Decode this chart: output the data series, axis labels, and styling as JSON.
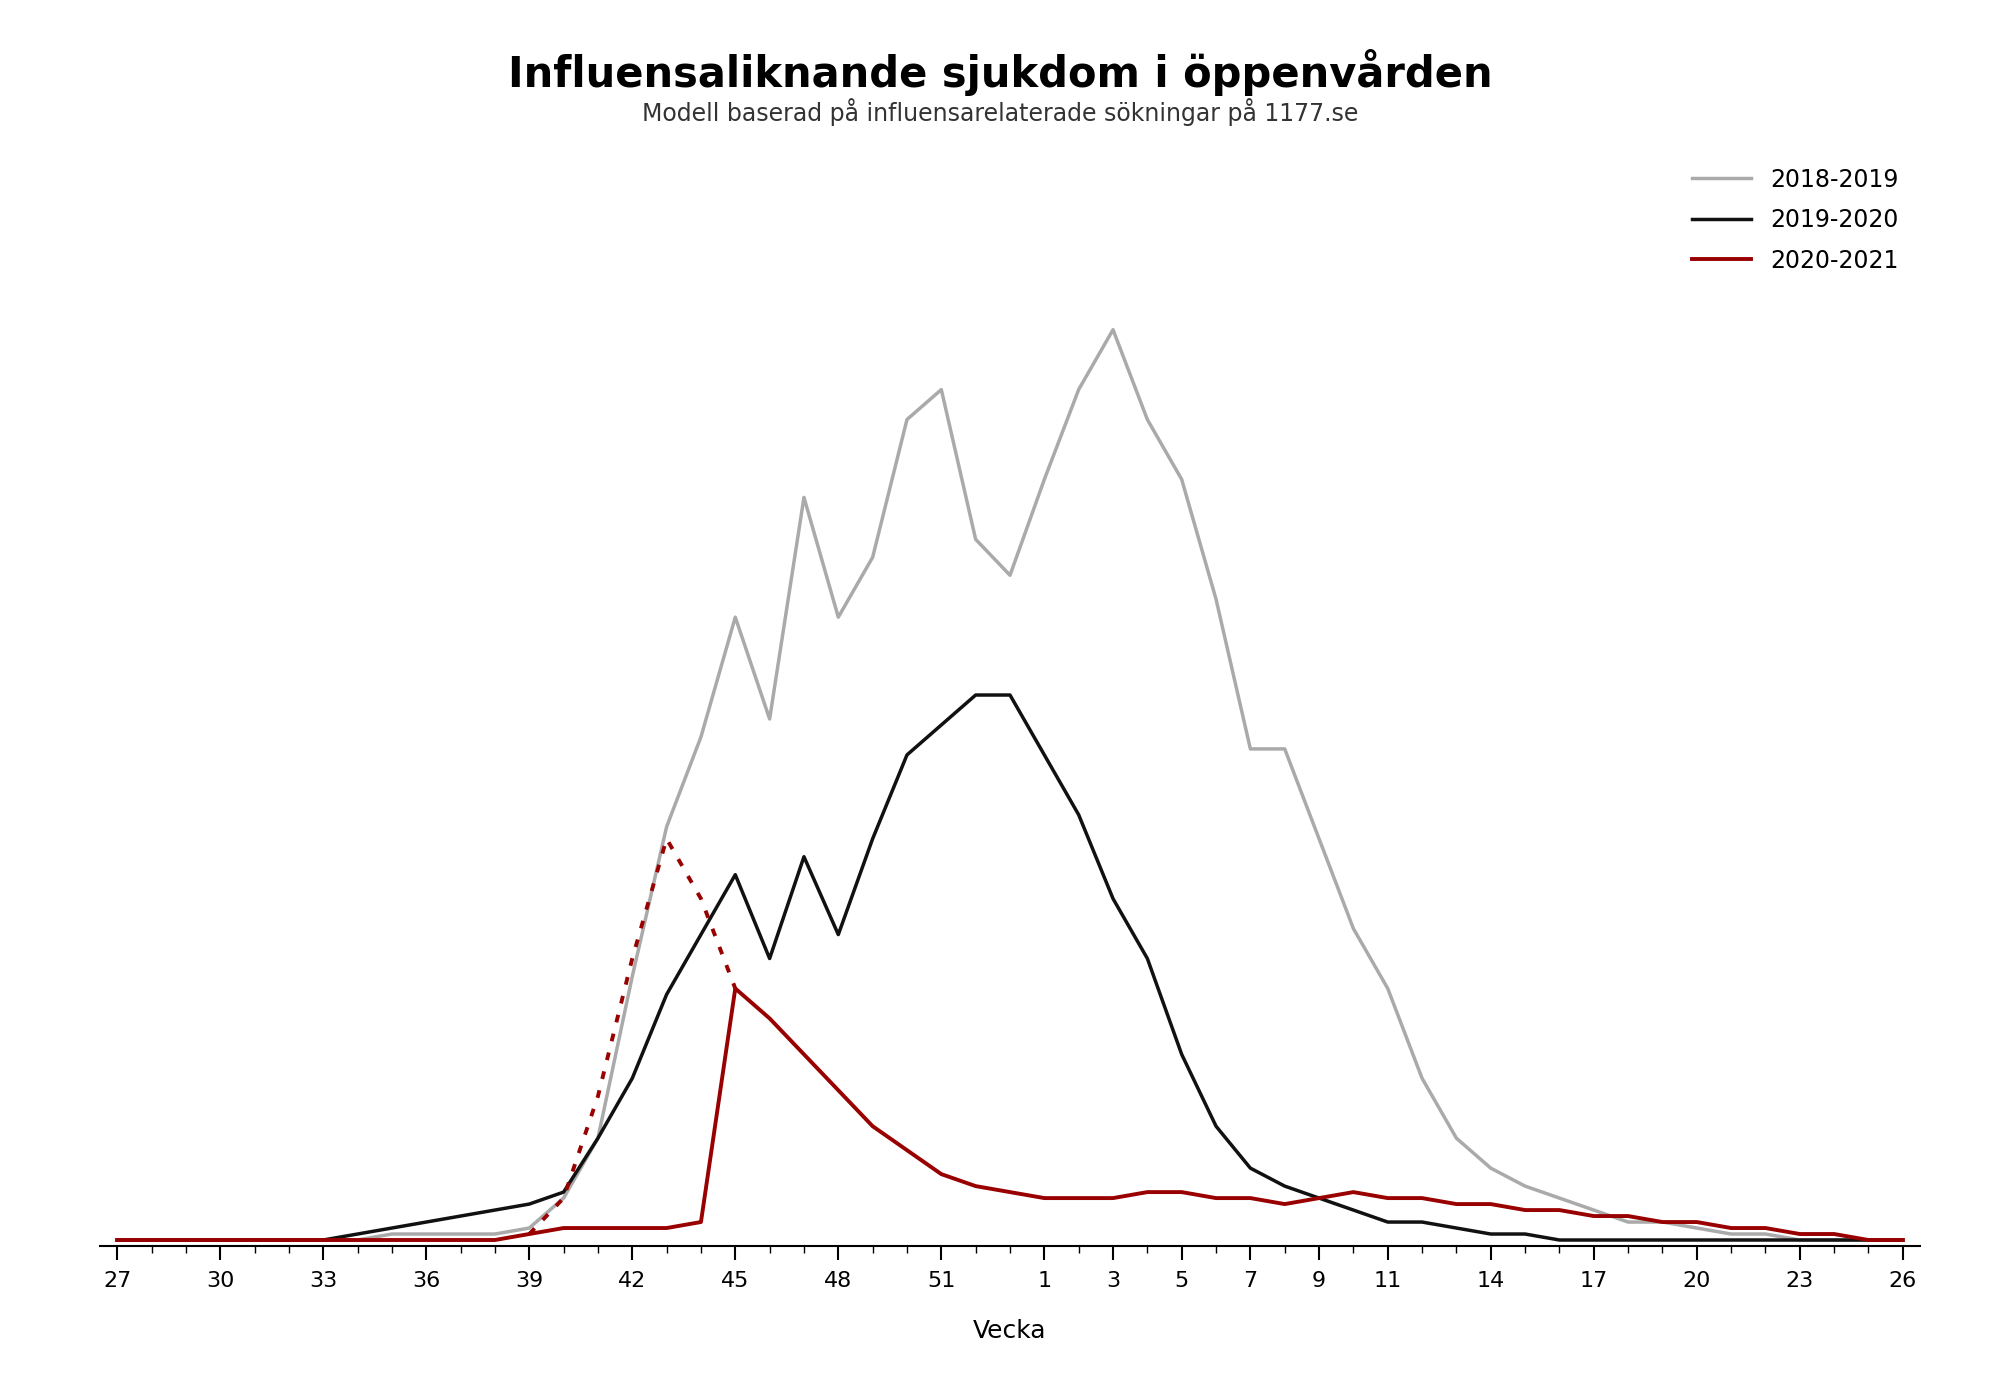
{
  "title": "Influensaliknande sjukdom i öppenvården",
  "subtitle": "Modell baserad på influensarelaterade sökningar på 1177.se",
  "xlabel": "Vecka",
  "background_color": "#ffffff",
  "title_fontsize": 30,
  "subtitle_fontsize": 17,
  "legend_fontsize": 17,
  "x_tick_labels": [
    "27",
    "30",
    "33",
    "36",
    "39",
    "42",
    "45",
    "48",
    "51",
    "1",
    "3",
    "5",
    "7",
    "9",
    "11",
    "14",
    "17",
    "20",
    "23",
    "26"
  ],
  "x_tick_positions": [
    0,
    3,
    6,
    9,
    12,
    15,
    18,
    21,
    24,
    27,
    29,
    31,
    33,
    35,
    37,
    40,
    43,
    46,
    49,
    52
  ],
  "season_2018_2019_y": [
    1,
    1,
    1,
    1,
    1,
    1,
    1,
    1,
    2,
    2,
    2,
    2,
    3,
    8,
    18,
    45,
    70,
    85,
    105,
    88,
    125,
    105,
    115,
    138,
    143,
    118,
    112,
    128,
    143,
    153,
    138,
    128,
    108,
    83,
    83,
    68,
    53,
    43,
    28,
    18,
    13,
    10,
    8,
    6,
    4,
    4,
    3,
    2,
    2,
    1,
    1,
    1,
    1
  ],
  "season_2019_2020_y": [
    1,
    1,
    1,
    1,
    1,
    1,
    1,
    2,
    3,
    4,
    5,
    6,
    7,
    9,
    18,
    28,
    42,
    52,
    62,
    48,
    65,
    52,
    68,
    82,
    87,
    92,
    92,
    82,
    72,
    58,
    48,
    32,
    20,
    13,
    10,
    8,
    6,
    4,
    4,
    3,
    2,
    2,
    1,
    1,
    1,
    1,
    1,
    1,
    1,
    1,
    1,
    1,
    1
  ],
  "season_2021_solid_x": [
    0,
    1,
    2,
    3,
    4,
    5,
    6,
    7,
    8,
    9,
    10,
    11,
    12,
    13,
    14,
    15,
    16,
    17,
    18,
    19,
    20,
    21,
    22,
    23,
    24,
    25,
    26,
    27,
    28,
    29,
    30,
    31,
    32,
    33,
    34,
    35,
    36,
    37,
    38,
    39,
    40,
    41,
    42,
    43,
    44,
    45,
    46,
    47,
    48,
    49,
    50,
    51,
    52
  ],
  "season_2021_solid_y": [
    1,
    1,
    1,
    1,
    1,
    1,
    1,
    1,
    1,
    1,
    1,
    1,
    2,
    3,
    3,
    3,
    3,
    4,
    43,
    38,
    32,
    26,
    20,
    16,
    12,
    10,
    9,
    8,
    8,
    8,
    9,
    9,
    8,
    8,
    7,
    8,
    9,
    8,
    8,
    7,
    7,
    6,
    6,
    5,
    5,
    4,
    4,
    3,
    3,
    2,
    2,
    1,
    1
  ],
  "season_2021_dashed_x": [
    12,
    13,
    14,
    15,
    16,
    17,
    18
  ],
  "season_2021_dashed_y": [
    2,
    8,
    25,
    48,
    68,
    58,
    43
  ],
  "ylim_max": 180
}
